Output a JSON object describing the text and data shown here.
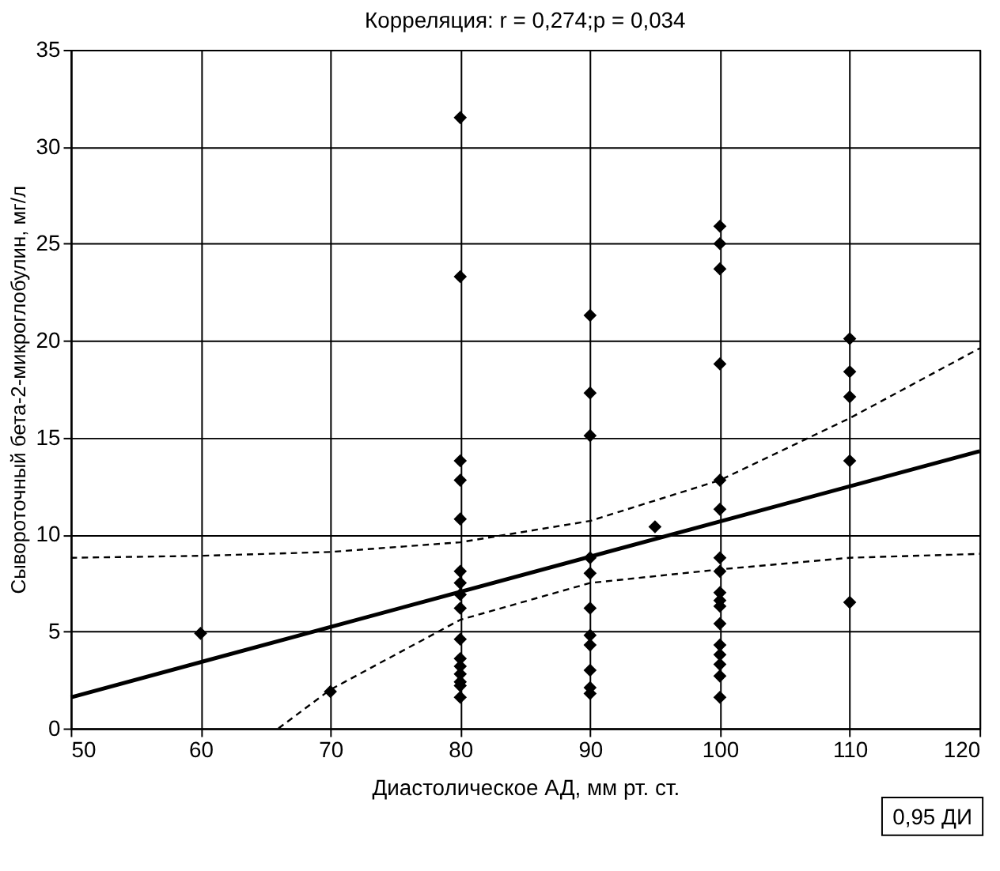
{
  "chart_data": {
    "type": "scatter",
    "title": "Корреляция: r = 0,274;p = 0,034",
    "xlabel": "Диастолическое АД, мм рт. ст.",
    "ylabel": "Сывороточный бета-2-микроглобулин, мг/л",
    "xlim": [
      50,
      120
    ],
    "xticks": [
      50,
      60,
      70,
      80,
      90,
      100,
      110,
      120
    ],
    "ylim": [
      0,
      35
    ],
    "yticks": [
      0,
      5,
      10,
      15,
      20,
      25,
      30,
      35
    ],
    "grid": true,
    "annotations": [
      "0,95 ДИ"
    ],
    "series": [
      {
        "color": "#000000",
        "marker": "diamond",
        "x": [
          60,
          70,
          80,
          80,
          80,
          80,
          80,
          80,
          80,
          80,
          80,
          80,
          80,
          80,
          80,
          80,
          80,
          80,
          90,
          90,
          90,
          90,
          90,
          90,
          90,
          90,
          90,
          90,
          90,
          95,
          100,
          100,
          100,
          100,
          100,
          100,
          100,
          100,
          100,
          100,
          100,
          100,
          100,
          100,
          100,
          100,
          100,
          110,
          110,
          110,
          110,
          110
        ],
        "values": [
          4.9,
          1.9,
          31.5,
          23.3,
          13.8,
          12.8,
          10.8,
          8.1,
          7.5,
          6.9,
          6.2,
          4.6,
          3.6,
          3.2,
          2.8,
          2.4,
          2.2,
          1.6,
          21.3,
          17.3,
          15.1,
          8.8,
          8.0,
          6.2,
          4.8,
          4.3,
          3.0,
          2.1,
          1.8,
          10.4,
          25.9,
          25.0,
          23.7,
          18.8,
          12.8,
          11.3,
          8.8,
          8.1,
          7.0,
          6.6,
          6.3,
          5.4,
          4.3,
          3.8,
          3.3,
          2.7,
          1.6,
          20.1,
          18.4,
          17.1,
          13.8,
          6.5
        ]
      },
      {
        "type": "line",
        "color": "#000000",
        "line_style": "solid",
        "x": [
          50,
          120
        ],
        "values": [
          1.6,
          14.3
        ]
      },
      {
        "type": "line",
        "color": "#000000",
        "line_style": "dashed",
        "x": [
          50,
          60,
          70,
          80,
          90,
          100,
          110,
          120
        ],
        "values": [
          8.8,
          8.9,
          9.1,
          9.6,
          10.7,
          12.8,
          16.0,
          19.6
        ]
      },
      {
        "type": "line",
        "color": "#000000",
        "line_style": "dashed",
        "x": [
          66,
          70,
          80,
          90,
          100,
          110,
          120
        ],
        "values": [
          0,
          2.0,
          5.6,
          7.5,
          8.2,
          8.8,
          9.0
        ]
      }
    ]
  }
}
